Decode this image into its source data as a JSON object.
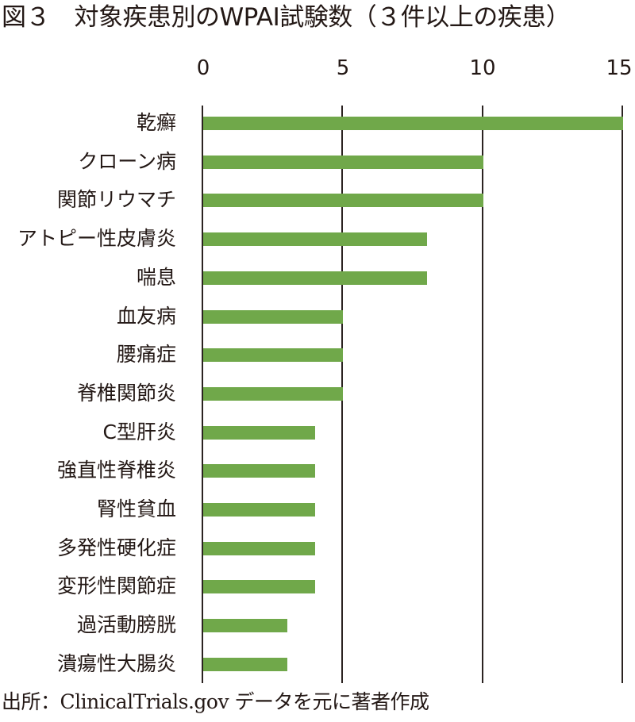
{
  "title": "図３　対象疾患別のWPAI試験数（３件以上の疾患）",
  "source": "出所：ClinicalTrials.gov データを元に著者作成",
  "colors": {
    "bar": "#70a84a",
    "grid": "#2b2321",
    "text": "#231815"
  },
  "chart_data": {
    "type": "bar",
    "orientation": "horizontal",
    "title": "図３　対象疾患別のWPAI試験数（３件以上の疾患）",
    "xlabel": "",
    "ylabel": "",
    "xlim": [
      0,
      15
    ],
    "x_ticks": [
      "0",
      "5",
      "10",
      "15"
    ],
    "x_axis_position": "top",
    "grid": true,
    "legend": null,
    "categories": [
      "乾癬",
      "クローン病",
      "関節リウマチ",
      "アトピー性皮膚炎",
      "喘息",
      "血友病",
      "腰痛症",
      "脊椎関節炎",
      "C型肝炎",
      "強直性脊椎炎",
      "腎性貧血",
      "多発性硬化症",
      "変形性関節症",
      "過活動膀胱",
      "潰瘍性大腸炎"
    ],
    "values": [
      15,
      10,
      10,
      8,
      8,
      5,
      5,
      5,
      4,
      4,
      4,
      4,
      4,
      3,
      3
    ],
    "source_note": "出所：ClinicalTrials.gov データを元に著者作成"
  }
}
